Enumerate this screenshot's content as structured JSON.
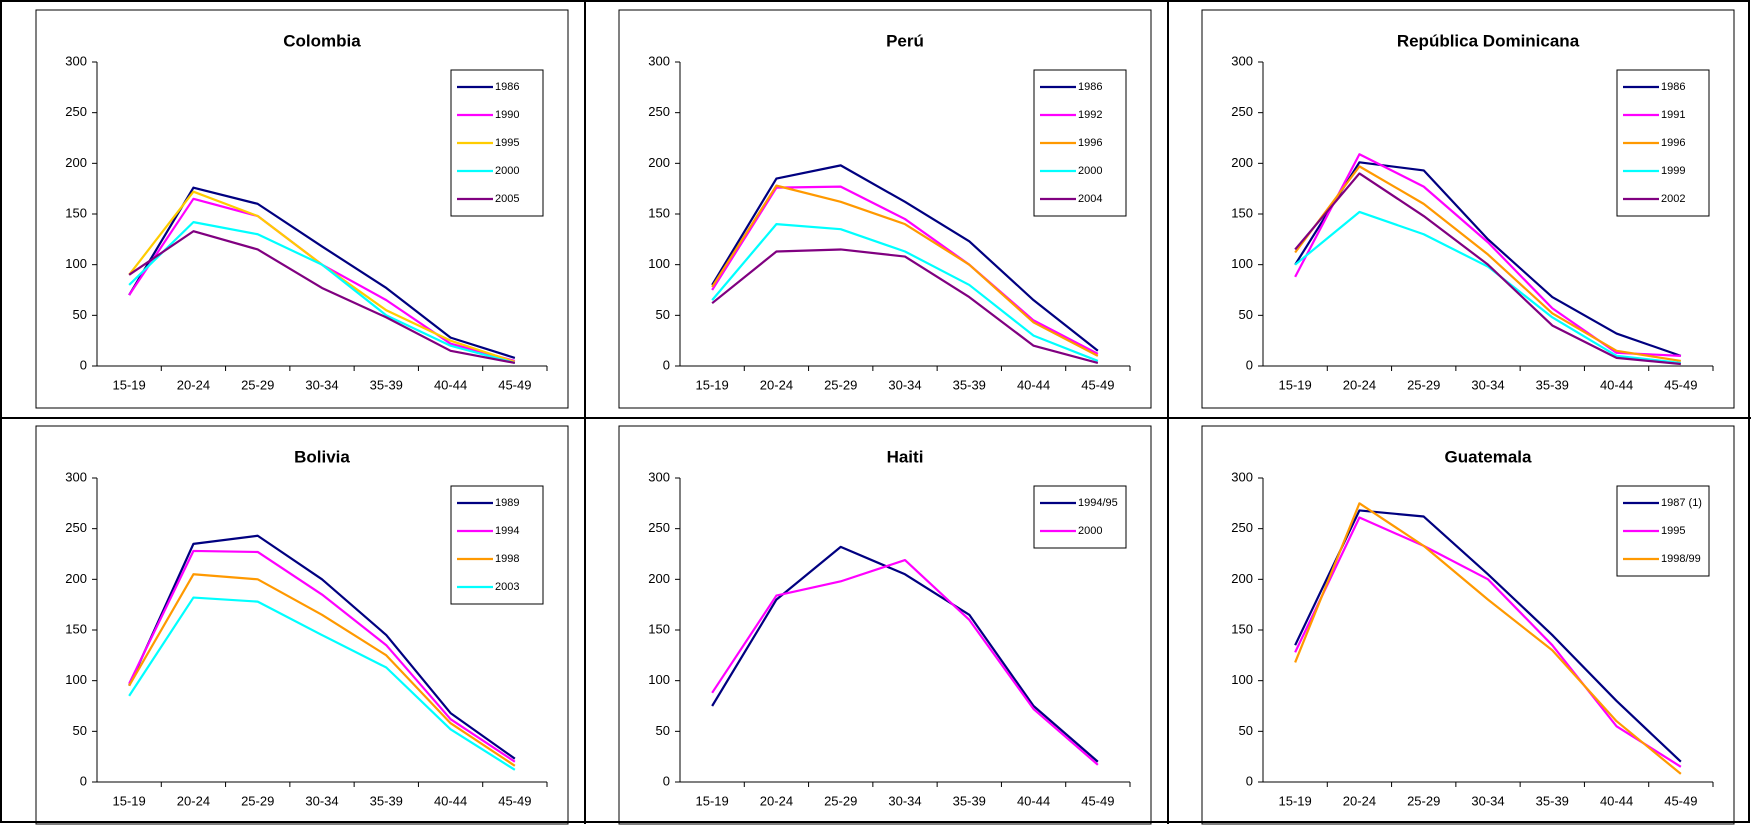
{
  "chart_data": [
    {
      "type": "line",
      "title": "Colombia",
      "categories": [
        "15-19",
        "20-24",
        "25-29",
        "30-34",
        "35-39",
        "40-44",
        "45-49"
      ],
      "ylim": [
        0,
        300
      ],
      "yticks": [
        0,
        50,
        100,
        150,
        200,
        250,
        300
      ],
      "legend": "upper right",
      "series": [
        {
          "name": "1986",
          "color": "#000080",
          "values": [
            70,
            176,
            160,
            118,
            77,
            28,
            8
          ]
        },
        {
          "name": "1990",
          "color": "#ff00ff",
          "values": [
            70,
            165,
            148,
            100,
            65,
            22,
            5
          ]
        },
        {
          "name": "1995",
          "color": "#ffcc00",
          "values": [
            90,
            172,
            148,
            100,
            55,
            25,
            4
          ]
        },
        {
          "name": "2000",
          "color": "#00ffff",
          "values": [
            80,
            142,
            130,
            100,
            50,
            20,
            3
          ]
        },
        {
          "name": "2005",
          "color": "#800080",
          "values": [
            90,
            133,
            115,
            77,
            48,
            15,
            3
          ]
        }
      ]
    },
    {
      "type": "line",
      "title": "Perú",
      "categories": [
        "15-19",
        "20-24",
        "25-29",
        "30-34",
        "35-39",
        "40-44",
        "45-49"
      ],
      "ylim": [
        0,
        300
      ],
      "yticks": [
        0,
        50,
        100,
        150,
        200,
        250,
        300
      ],
      "legend": "upper right",
      "series": [
        {
          "name": "1986",
          "color": "#000080",
          "values": [
            80,
            185,
            198,
            162,
            123,
            65,
            15
          ]
        },
        {
          "name": "1992",
          "color": "#ff00ff",
          "values": [
            75,
            176,
            177,
            145,
            100,
            45,
            12
          ]
        },
        {
          "name": "1996",
          "color": "#ff9900",
          "values": [
            78,
            178,
            162,
            140,
            100,
            43,
            10
          ]
        },
        {
          "name": "2000",
          "color": "#00ffff",
          "values": [
            65,
            140,
            135,
            113,
            80,
            30,
            5
          ]
        },
        {
          "name": "2004",
          "color": "#800080",
          "values": [
            62,
            113,
            115,
            108,
            68,
            20,
            3
          ]
        }
      ]
    },
    {
      "type": "line",
      "title": "República Dominicana",
      "categories": [
        "15-19",
        "20-24",
        "25-29",
        "30-34",
        "35-39",
        "40-44",
        "45-49"
      ],
      "ylim": [
        0,
        300
      ],
      "yticks": [
        0,
        50,
        100,
        150,
        200,
        250,
        300
      ],
      "legend": "upper right",
      "series": [
        {
          "name": "1986",
          "color": "#000080",
          "values": [
            100,
            201,
            193,
            125,
            68,
            32,
            10
          ]
        },
        {
          "name": "1991",
          "color": "#ff00ff",
          "values": [
            88,
            209,
            177,
            122,
            57,
            13,
            10
          ]
        },
        {
          "name": "1996",
          "color": "#ff9900",
          "values": [
            112,
            197,
            160,
            110,
            52,
            15,
            5
          ]
        },
        {
          "name": "1999",
          "color": "#00ffff",
          "values": [
            100,
            152,
            130,
            98,
            48,
            10,
            3
          ]
        },
        {
          "name": "2002",
          "color": "#800080",
          "values": [
            115,
            190,
            148,
            100,
            40,
            8,
            2
          ]
        }
      ]
    },
    {
      "type": "line",
      "title": "Bolivia",
      "categories": [
        "15-19",
        "20-24",
        "25-29",
        "30-34",
        "35-39",
        "40-44",
        "45-49"
      ],
      "ylim": [
        0,
        300
      ],
      "yticks": [
        0,
        50,
        100,
        150,
        200,
        250,
        300
      ],
      "legend": "upper right",
      "series": [
        {
          "name": "1989",
          "color": "#000080",
          "values": [
            95,
            235,
            243,
            200,
            145,
            68,
            23
          ]
        },
        {
          "name": "1994",
          "color": "#ff00ff",
          "values": [
            97,
            228,
            227,
            185,
            135,
            62,
            20
          ]
        },
        {
          "name": "1998",
          "color": "#ff9900",
          "values": [
            95,
            205,
            200,
            165,
            125,
            58,
            16
          ]
        },
        {
          "name": "2003",
          "color": "#00ffff",
          "values": [
            85,
            182,
            178,
            145,
            113,
            52,
            12
          ]
        }
      ]
    },
    {
      "type": "line",
      "title": "Haiti",
      "categories": [
        "15-19",
        "20-24",
        "25-29",
        "30-34",
        "35-39",
        "40-44",
        "45-49"
      ],
      "ylim": [
        0,
        300
      ],
      "yticks": [
        0,
        50,
        100,
        150,
        200,
        250,
        300
      ],
      "legend": "upper right",
      "series": [
        {
          "name": "1994/95",
          "color": "#000080",
          "values": [
            75,
            180,
            232,
            205,
            165,
            75,
            20
          ]
        },
        {
          "name": "2000",
          "color": "#ff00ff",
          "values": [
            88,
            184,
            198,
            219,
            160,
            72,
            17
          ]
        }
      ]
    },
    {
      "type": "line",
      "title": "Guatemala",
      "categories": [
        "15-19",
        "20-24",
        "25-29",
        "30-34",
        "35-39",
        "40-44",
        "45-49"
      ],
      "ylim": [
        0,
        300
      ],
      "yticks": [
        0,
        50,
        100,
        150,
        200,
        250,
        300
      ],
      "legend": "upper right",
      "series": [
        {
          "name": "1987 (1)",
          "color": "#000080",
          "values": [
            135,
            268,
            262,
            205,
            145,
            80,
            20
          ]
        },
        {
          "name": "1995",
          "color": "#ff00ff",
          "values": [
            128,
            261,
            233,
            200,
            135,
            55,
            15
          ]
        },
        {
          "name": "1998/99",
          "color": "#ff9900",
          "values": [
            118,
            275,
            233,
            180,
            130,
            60,
            8
          ]
        }
      ]
    }
  ]
}
